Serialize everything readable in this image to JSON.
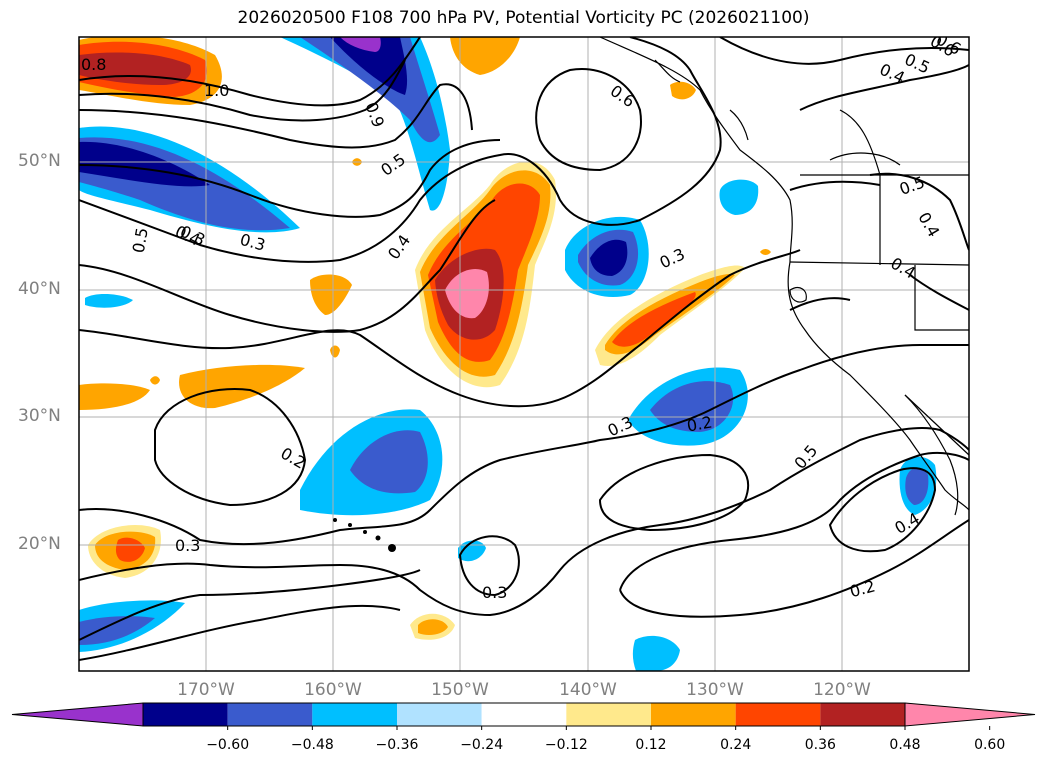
{
  "title": "2026020500 F108 700 hPa PV, Potential Vorticity PC (2026021100)",
  "map": {
    "projection": "lat-lon",
    "lat_labels": [
      "50°N",
      "40°N",
      "30°N",
      "20°N"
    ],
    "lon_labels": [
      "170°W",
      "160°W",
      "150°W",
      "140°W",
      "130°W",
      "120°W"
    ],
    "grid": true,
    "coastlines": true,
    "state_borders": true
  },
  "contour_labels": [
    "1.0",
    "0.8",
    "0.9",
    "0.5",
    "0.4",
    "0.3",
    "0.6",
    "0.5",
    "0.4",
    "0.6",
    "0.5",
    "0.4",
    "0.3",
    "0.2",
    "0.3",
    "0.3",
    "0.2",
    "0.3",
    "0.4",
    "0.2",
    "0.3",
    "0.5",
    "0.6",
    "0.4",
    "0.5",
    "0.4"
  ],
  "colorbar": {
    "ticks": [
      "−0.60",
      "−0.48",
      "−0.36",
      "−0.24",
      "−0.12",
      "0.12",
      "0.24",
      "0.36",
      "0.48",
      "0.60"
    ],
    "colors": [
      "#9932cc",
      "#00008b",
      "#3a5bcd",
      "#00bfff",
      "#b0e2ff",
      "#ffffff",
      "#ffe98c",
      "#ffa500",
      "#ff4500",
      "#b22222",
      "#ff86ab"
    ],
    "extend": "both"
  }
}
